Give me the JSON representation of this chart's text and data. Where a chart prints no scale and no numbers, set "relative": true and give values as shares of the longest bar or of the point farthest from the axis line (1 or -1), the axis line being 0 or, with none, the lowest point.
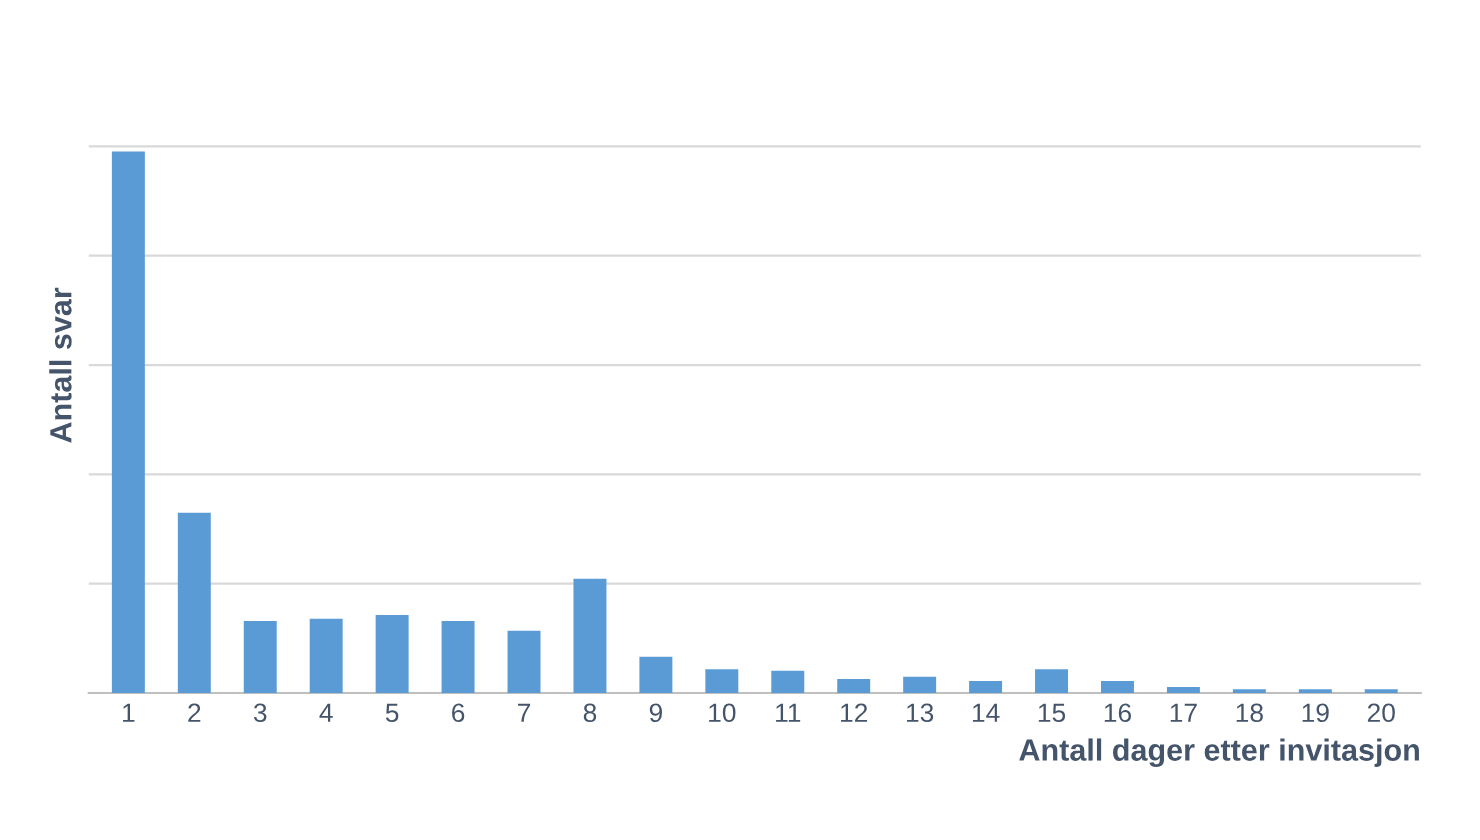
{
  "chart_data": {
    "type": "bar",
    "relative": true,
    "xlabel": "Antall dager etter invitasjon",
    "ylabel": "Antall svar",
    "categories": [
      "1",
      "2",
      "3",
      "4",
      "5",
      "6",
      "7",
      "8",
      "9",
      "10",
      "11",
      "12",
      "13",
      "14",
      "15",
      "16",
      "17",
      "18",
      "19",
      "20"
    ],
    "values": [
      1,
      0.333,
      0.133,
      0.137,
      0.144,
      0.133,
      0.115,
      0.211,
      0.067,
      0.044,
      0.041,
      0.026,
      0.03,
      0.022,
      0.044,
      0.022,
      0.011,
      0.007,
      0.007,
      0.007
    ],
    "color": "#5b9bd5",
    "grid": "y",
    "legend": false
  }
}
